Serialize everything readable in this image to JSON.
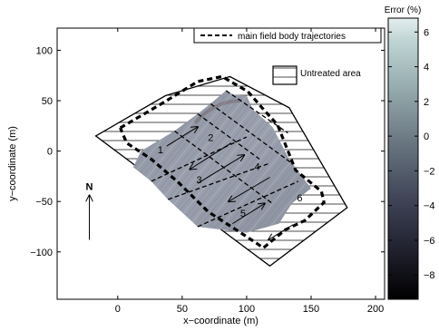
{
  "chart_data": {
    "type": "heatmap",
    "xlabel": "x−coordinate (m)",
    "ylabel": "y−coordinate (m)",
    "xlim": [
      -47,
      207
    ],
    "ylim": [
      -147,
      122
    ],
    "xticks": [
      0,
      50,
      100,
      150,
      200
    ],
    "yticks": [
      -100,
      -50,
      0,
      50,
      100
    ],
    "x_tick_labels": [
      "0",
      "50",
      "100",
      "150",
      "200"
    ],
    "y_tick_labels": [
      "−100",
      "−50",
      "0",
      "50",
      "100"
    ],
    "grid": false,
    "field_boundary": [
      [
        -17,
        15
      ],
      [
        37,
        55
      ],
      [
        87,
        74
      ],
      [
        133,
        43
      ],
      [
        178,
        -56
      ],
      [
        118,
        -114
      ]
    ],
    "treated_area": [
      [
        18,
        0
      ],
      [
        44,
        20
      ],
      [
        62,
        37
      ],
      [
        72,
        47
      ],
      [
        84,
        60
      ],
      [
        90,
        56
      ],
      [
        100,
        55
      ],
      [
        105,
        41
      ],
      [
        120,
        24
      ],
      [
        133,
        -8
      ],
      [
        150,
        -37
      ],
      [
        135,
        -52
      ],
      [
        125,
        -72
      ],
      [
        100,
        -81
      ],
      [
        62,
        -75
      ],
      [
        39,
        -48
      ],
      [
        26,
        -30
      ],
      [
        12,
        -16
      ]
    ],
    "trajectory_path": [
      [
        2,
        23
      ],
      [
        34,
        47
      ],
      [
        62,
        69
      ],
      [
        81,
        74
      ],
      [
        101,
        59
      ],
      [
        114,
        40
      ],
      [
        124,
        26
      ],
      [
        138,
        -19
      ],
      [
        158,
        -40
      ],
      [
        160,
        -51
      ],
      [
        145,
        -69
      ],
      [
        130,
        -78
      ],
      [
        113,
        -96
      ],
      [
        99,
        -84
      ],
      [
        70,
        -60
      ],
      [
        47,
        -31
      ],
      [
        26,
        -8
      ],
      [
        7,
        8
      ],
      [
        2,
        23
      ]
    ],
    "pass_arrows": [
      {
        "label": "1",
        "from": [
          38,
          5
        ],
        "to": [
          62,
          24
        ],
        "label_at": [
          31,
          -2
        ]
      },
      {
        "label": "2",
        "from": [
          88,
          8
        ],
        "to": [
          56,
          -18
        ],
        "label_at": [
          70,
          10
        ]
      },
      {
        "label": "3",
        "from": [
          62,
          -32
        ],
        "to": [
          98,
          -4
        ],
        "label_at": [
          61,
          -32
        ]
      },
      {
        "label": "4",
        "from": [
          118,
          -26
        ],
        "to": [
          86,
          -50
        ],
        "label_at": [
          106,
          -19
        ]
      },
      {
        "label": "5",
        "from": [
          89,
          -72
        ],
        "to": [
          114,
          -52
        ],
        "label_at": [
          95,
          -65
        ]
      },
      {
        "label": "6",
        "from": [
          136,
          -73
        ],
        "to": [
          117,
          -88
        ],
        "label_at": [
          139,
          -50
        ]
      }
    ],
    "north_arrow": {
      "label": "N",
      "from": [
        -22,
        -88
      ],
      "to": [
        -22,
        -44
      ]
    },
    "legend_entries": [
      "main field body trajectories",
      "Untreated area"
    ],
    "legend_placement": "top-right",
    "colorbar": {
      "label": "Error (%)",
      "range": [
        -9.4,
        6.8
      ],
      "ticks": [
        6,
        4,
        2,
        0,
        -2,
        -4,
        -6,
        -8
      ],
      "tick_labels": [
        "6",
        "4",
        "2",
        "0",
        "−2",
        "−4",
        "−6",
        "−8"
      ],
      "colormap": "bone"
    }
  }
}
